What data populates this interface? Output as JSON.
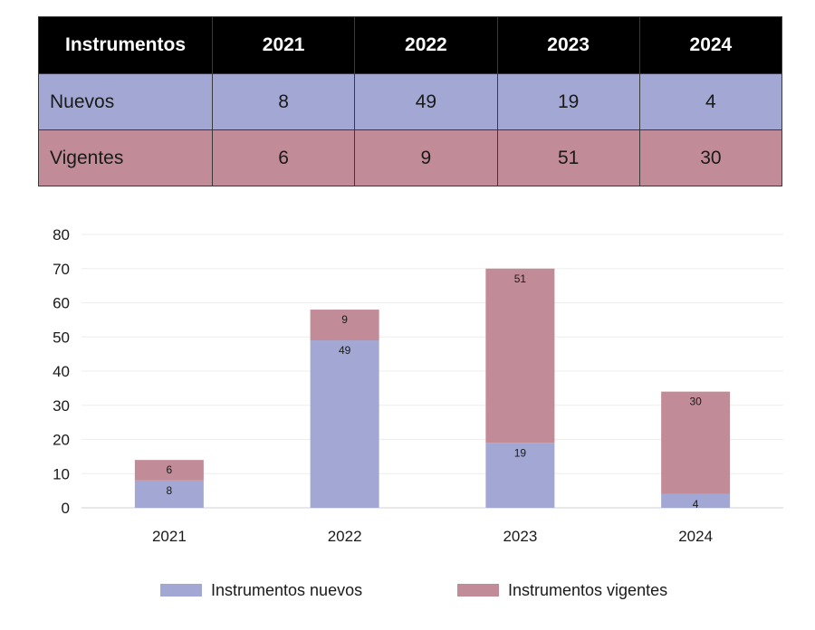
{
  "table": {
    "header": [
      "Instrumentos",
      "2021",
      "2022",
      "2023",
      "2024"
    ],
    "rows": [
      {
        "label": "Nuevos",
        "values": [
          "8",
          "49",
          "19",
          "4"
        ]
      },
      {
        "label": "Vigentes",
        "values": [
          "6",
          "9",
          "51",
          "30"
        ]
      }
    ]
  },
  "chart_data": {
    "type": "bar",
    "stacked": true,
    "categories": [
      "2021",
      "2022",
      "2023",
      "2024"
    ],
    "series": [
      {
        "name": "Instrumentos nuevos",
        "values": [
          8,
          49,
          19,
          4
        ],
        "color": "#a2a8d3"
      },
      {
        "name": "Instrumentos vigentes",
        "values": [
          6,
          9,
          51,
          30
        ],
        "color": "#c28b98"
      }
    ],
    "ylim": [
      0,
      80
    ],
    "yticks": [
      "0",
      "10",
      "20",
      "30",
      "40",
      "50",
      "60",
      "70",
      "80"
    ],
    "grid": true,
    "legend_position": "bottom",
    "title": "",
    "xlabel": "",
    "ylabel": ""
  },
  "colors": {
    "nuevos": "#a2a8d3",
    "vigentes": "#c28b98",
    "header": "#000000"
  }
}
